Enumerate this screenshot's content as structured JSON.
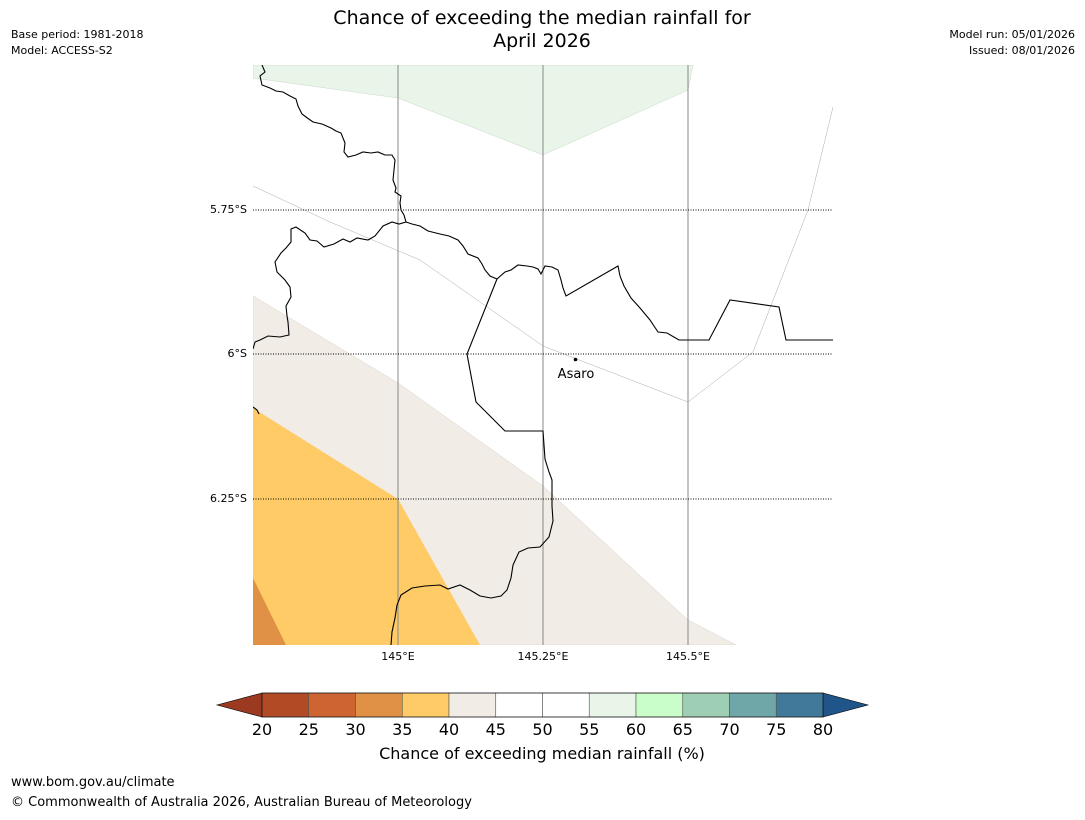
{
  "header": {
    "base_period": "Base period: 1981-2018",
    "model": "Model: ACCESS-S2",
    "model_run": "Model run: 05/01/2026",
    "issued": "Issued: 08/01/2026"
  },
  "title": {
    "line1": "Chance of exceeding the median rainfall for",
    "line2": "April 2026"
  },
  "map": {
    "lat_labels": [
      "5.75°S",
      "6°S",
      "6.25°S"
    ],
    "lon_labels": [
      "145°E",
      "145.25°E",
      "145.5°E"
    ],
    "location": {
      "name": "Asaro"
    }
  },
  "colorbar": {
    "ticks": [
      "20",
      "25",
      "30",
      "35",
      "40",
      "45",
      "50",
      "55",
      "60",
      "65",
      "70",
      "75",
      "80"
    ],
    "colors": [
      "#b24a25",
      "#cd6431",
      "#e09146",
      "#fecb67",
      "#f1ece6",
      "#ffffff",
      "#ffffff",
      "#e9f5e8",
      "#c9fdc9",
      "#9ecfb5",
      "#6fa6a7",
      "#41799b"
    ],
    "under_color": "#9b3a21",
    "over_color": "#1f5589",
    "label": "Chance of exceeding median rainfall (%)"
  },
  "footer": {
    "url": "www.bom.gov.au/climate",
    "copyright": "© Commonwealth of Australia 2026, Australian Bureau of Meteorology"
  }
}
